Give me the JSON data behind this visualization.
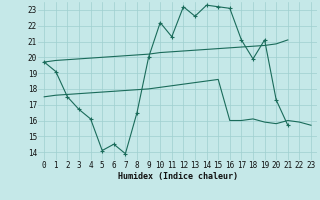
{
  "background_color": "#c5e8e8",
  "grid_color": "#9fcfcf",
  "line_color": "#1a6b5a",
  "xlim": [
    -0.5,
    23.5
  ],
  "ylim": [
    13.5,
    23.5
  ],
  "xticks": [
    0,
    1,
    2,
    3,
    4,
    5,
    6,
    7,
    8,
    9,
    10,
    11,
    12,
    13,
    14,
    15,
    16,
    17,
    18,
    19,
    20,
    21,
    22,
    23
  ],
  "yticks": [
    14,
    15,
    16,
    17,
    18,
    19,
    20,
    21,
    22,
    23
  ],
  "xlabel": "Humidex (Indice chaleur)",
  "line1_x": [
    0,
    1,
    2,
    3,
    4,
    5,
    6,
    7,
    8,
    9,
    10,
    11,
    12,
    13,
    14,
    15,
    16,
    17,
    18,
    19,
    20,
    21,
    22,
    23
  ],
  "line1_y": [
    19.7,
    19.1,
    17.5,
    16.7,
    16.1,
    14.1,
    14.5,
    13.9,
    16.5,
    20.0,
    22.2,
    21.3,
    23.2,
    22.6,
    23.3,
    23.2,
    23.1,
    21.1,
    19.9,
    21.1,
    17.3,
    15.7,
    null,
    null
  ],
  "line2_x": [
    0,
    1,
    2,
    3,
    4,
    5,
    6,
    7,
    8,
    9,
    10,
    11,
    12,
    13,
    14,
    15,
    16,
    17,
    18,
    19,
    20,
    21
  ],
  "line2_y": [
    19.7,
    19.8,
    19.85,
    19.9,
    19.95,
    20.0,
    20.05,
    20.1,
    20.15,
    20.2,
    20.3,
    20.35,
    20.4,
    20.45,
    20.5,
    20.55,
    20.6,
    20.65,
    20.7,
    20.75,
    20.85,
    21.1
  ],
  "line3_x": [
    0,
    1,
    2,
    3,
    4,
    5,
    6,
    7,
    8,
    9,
    10,
    11,
    12,
    13,
    14,
    15,
    16,
    17,
    18,
    19,
    20,
    21,
    22,
    23
  ],
  "line3_y": [
    17.5,
    17.6,
    17.65,
    17.7,
    17.75,
    17.8,
    17.85,
    17.9,
    17.95,
    18.0,
    18.1,
    18.2,
    18.3,
    18.4,
    18.5,
    18.6,
    16.0,
    16.0,
    16.1,
    15.9,
    15.8,
    16.0,
    15.9,
    15.7
  ]
}
